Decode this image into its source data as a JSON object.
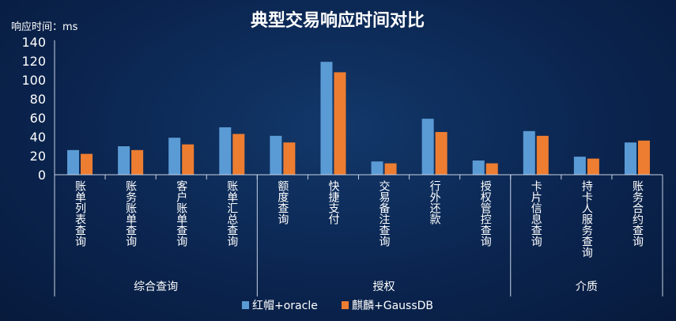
{
  "chart_data": {
    "type": "bar",
    "title": "典型交易响应时间对比",
    "ylabel": "响应时间：ms",
    "ylim": [
      0,
      140
    ],
    "yticks": [
      0,
      20,
      40,
      60,
      80,
      100,
      120,
      140
    ],
    "categories": [
      "账单列表查询",
      "账务账单查询",
      "客户账单查询",
      "账单汇总查询",
      "额度查询",
      "快捷支付",
      "交易备注查询",
      "行外还款",
      "授权管控查询",
      "卡片信息查询",
      "持卡人服务查询",
      "账务合约查询"
    ],
    "groups": [
      {
        "label": "综合查询",
        "count": 4
      },
      {
        "label": "授权",
        "count": 5
      },
      {
        "label": "介质",
        "count": 3
      }
    ],
    "series": [
      {
        "name": "红帽+oracle",
        "color": "#5b9bd5",
        "values": [
          26,
          30,
          39,
          50,
          41,
          119,
          14,
          59,
          15,
          46,
          19,
          34
        ]
      },
      {
        "name": "麒麟+GaussDB",
        "color": "#ed7d31",
        "values": [
          22,
          26,
          32,
          43,
          34,
          108,
          12,
          45,
          12,
          41,
          17,
          36
        ]
      }
    ],
    "legend_position": "bottom",
    "grid": false
  }
}
